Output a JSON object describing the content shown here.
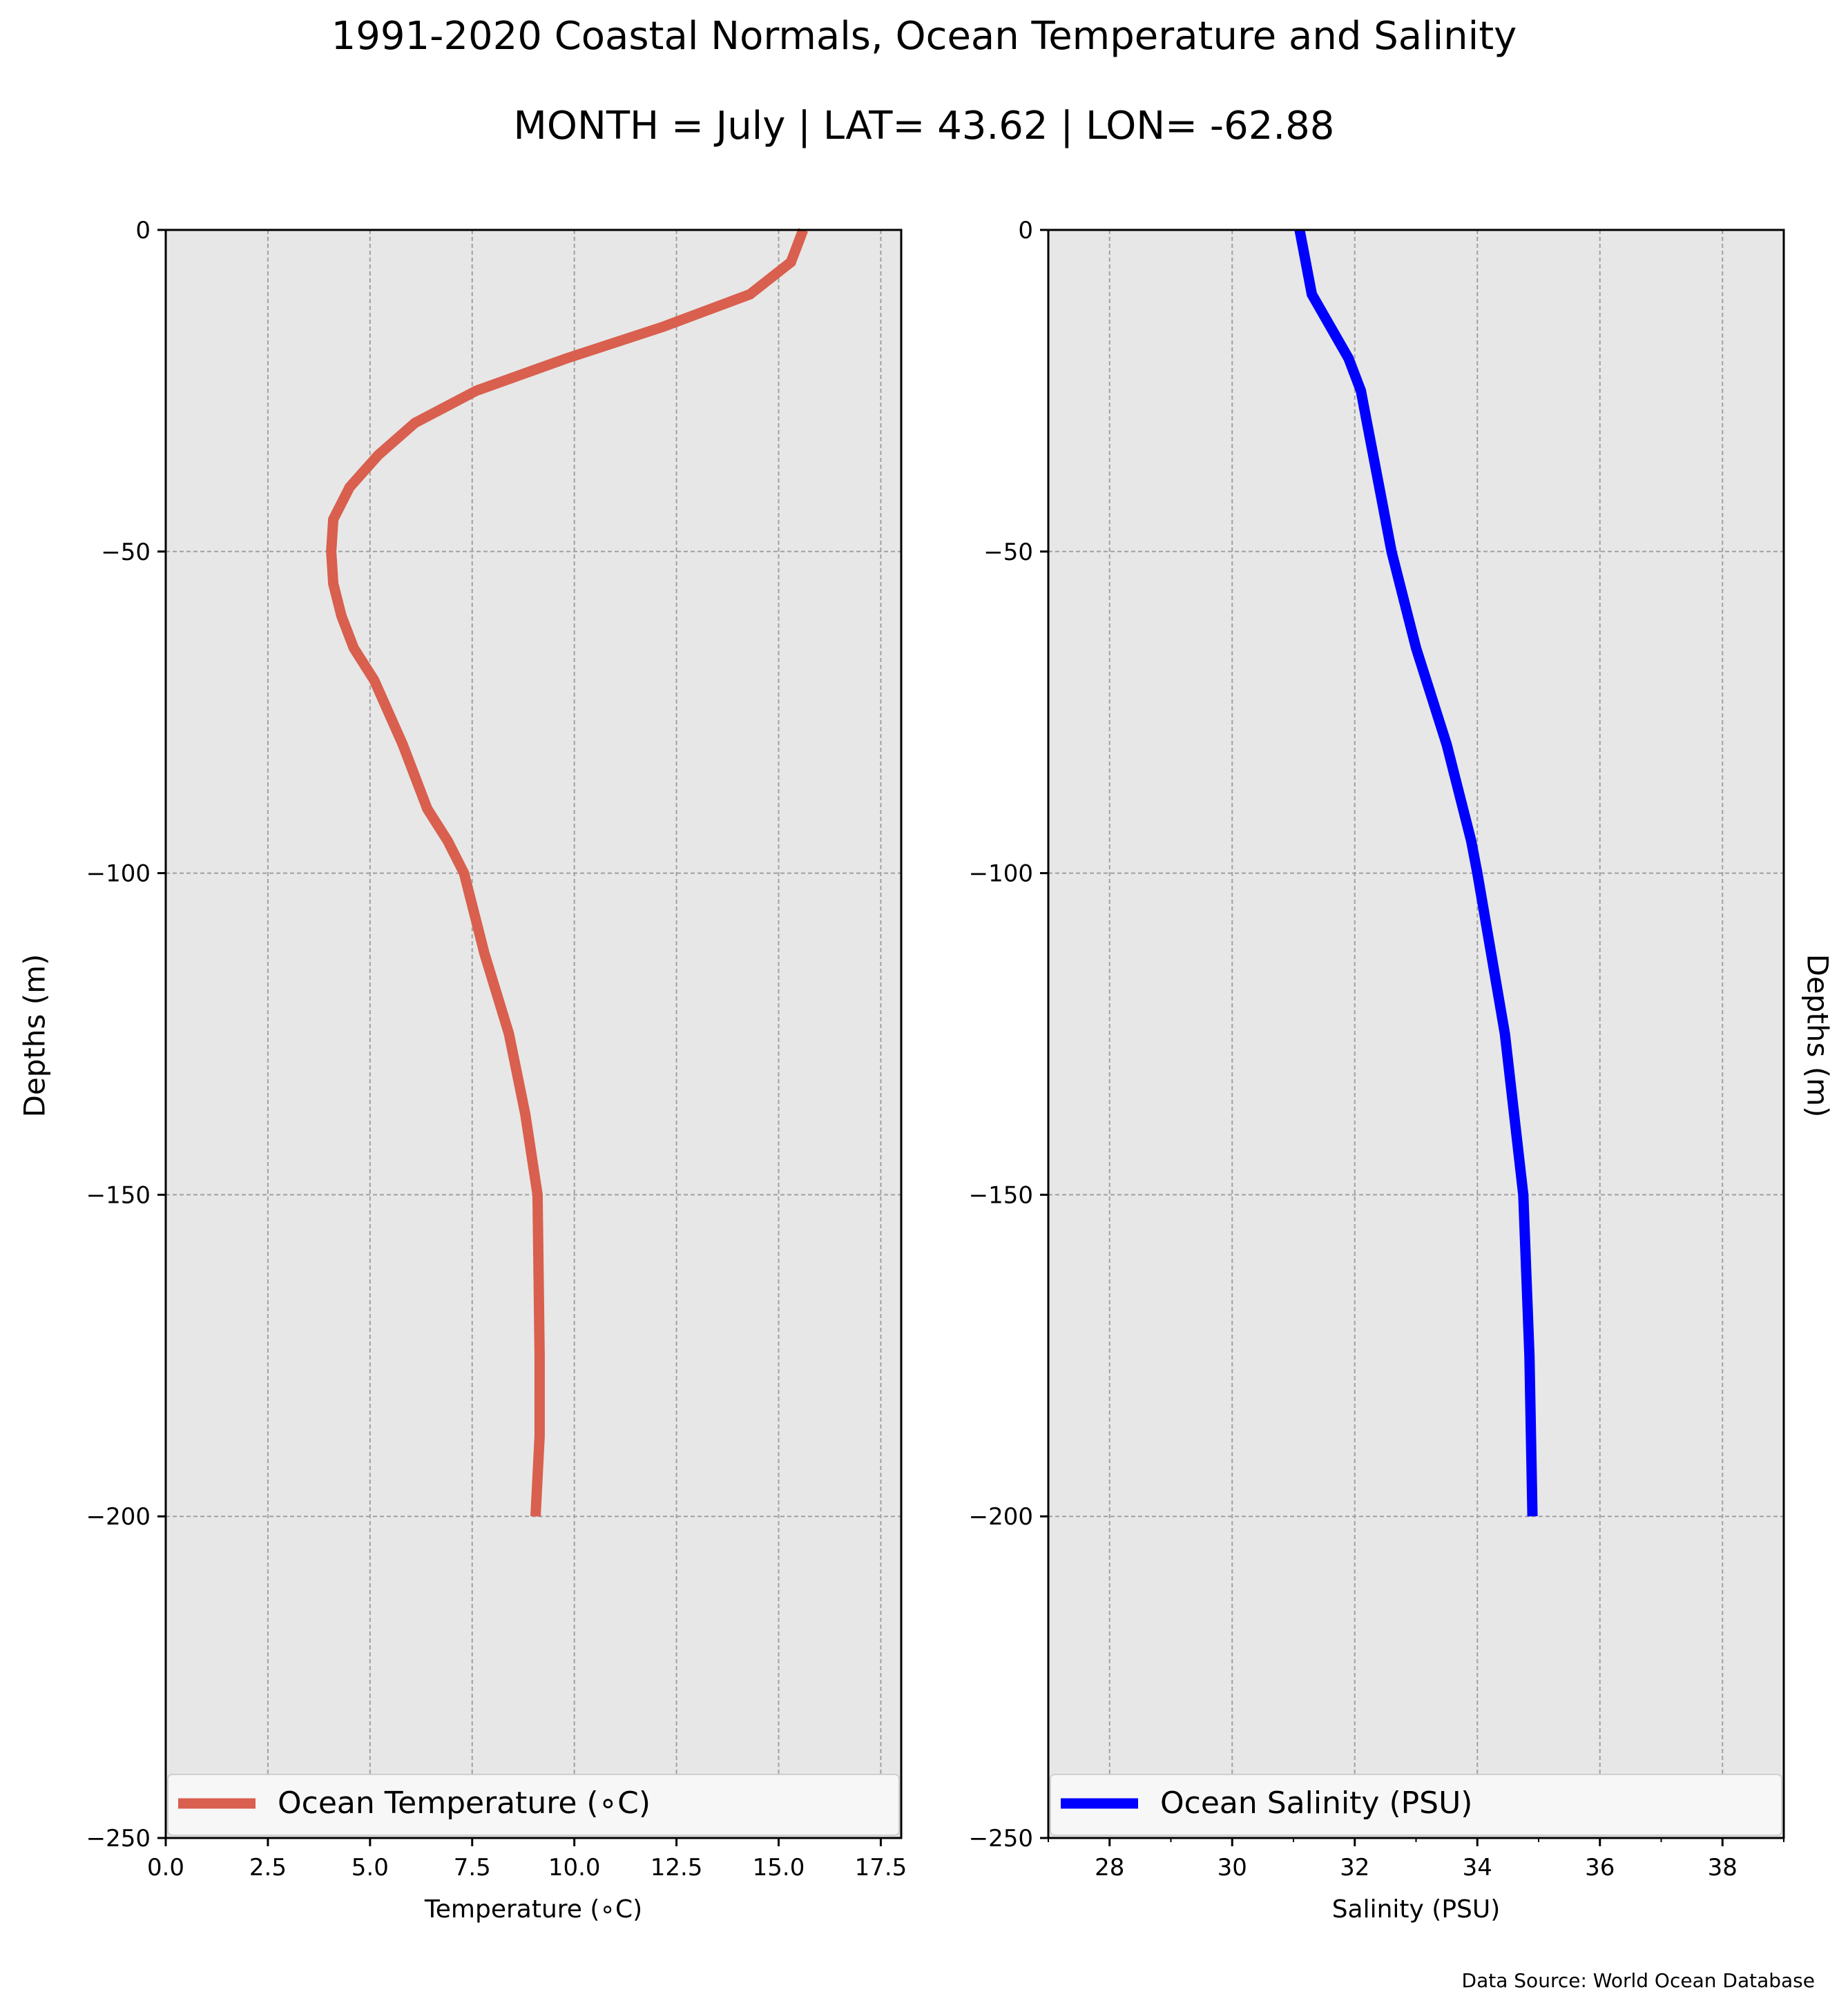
{
  "title": "1991-2020 Coastal Normals, Ocean Temperature and Salinity",
  "subtitle": "MONTH = July | LAT= 43.62 | LON= -62.88",
  "source_note": "Data Source: World Ocean Database",
  "ylabel_left": "Depths (m)",
  "ylabel_right": "Depths (m)",
  "chart_data": [
    {
      "type": "line",
      "xlabel": "Temperature (∘C)",
      "ylabel": "Depths (m)",
      "xlim": [
        0,
        18
      ],
      "ylim": [
        -250,
        0
      ],
      "xticks": [
        0,
        2.5,
        5,
        7.5,
        10,
        12.5,
        15,
        17.5
      ],
      "xtick_labels": [
        "0.0",
        "2.5",
        "5.0",
        "7.5",
        "10.0",
        "12.5",
        "15.0",
        "17.5"
      ],
      "yticks": [
        0,
        -50,
        -100,
        -150,
        -200,
        -250
      ],
      "ytick_labels": [
        "0",
        "−50",
        "−100",
        "−150",
        "−200",
        "−250"
      ],
      "grid": true,
      "legend": "bottom",
      "color": "#d95f4e",
      "background": "#e7e7e7",
      "series": [
        {
          "name": "Ocean Temperature (∘C)",
          "x": [
            15.6,
            15.3,
            14.3,
            12.2,
            9.8,
            7.6,
            6.1,
            5.2,
            4.5,
            4.1,
            4.05,
            4.1,
            4.3,
            4.6,
            5.1,
            5.8,
            6.4,
            6.9,
            7.3,
            7.8,
            8.4,
            8.8,
            9.1,
            9.15,
            9.15,
            9.05
          ],
          "y": [
            0,
            -5,
            -10,
            -15,
            -20,
            -25,
            -30,
            -35,
            -40,
            -45,
            -50,
            -55,
            -60,
            -65,
            -70,
            -80,
            -90,
            -95,
            -100,
            -112.5,
            -125,
            -137.5,
            -150,
            -175,
            -187.5,
            -200
          ]
        }
      ]
    },
    {
      "type": "line",
      "xlabel": "Salinity (PSU)",
      "ylabel": "Depths (m)",
      "xlim": [
        27,
        39
      ],
      "ylim": [
        -250,
        0
      ],
      "xticks": [
        28,
        30,
        32,
        34,
        36,
        38
      ],
      "xtick_labels": [
        "28",
        "30",
        "32",
        "34",
        "36",
        "38"
      ],
      "yticks": [
        0,
        -50,
        -100,
        -150,
        -200,
        -250
      ],
      "ytick_labels": [
        "0",
        "−50",
        "−100",
        "−150",
        "−200",
        "−250"
      ],
      "grid": true,
      "legend": "bottom",
      "color": "#0000ff",
      "background": "#e7e7e7",
      "series": [
        {
          "name": "Ocean Salinity (PSU)",
          "x": [
            31.1,
            31.3,
            31.9,
            32.1,
            32.2,
            32.4,
            32.6,
            33.0,
            33.5,
            33.9,
            34.0,
            34.45,
            34.75,
            34.85,
            34.9
          ],
          "y": [
            0,
            -10,
            -20,
            -25,
            -30,
            -40,
            -50,
            -65,
            -80,
            -95,
            -100,
            -125,
            -150,
            -175,
            -200
          ]
        }
      ]
    }
  ]
}
